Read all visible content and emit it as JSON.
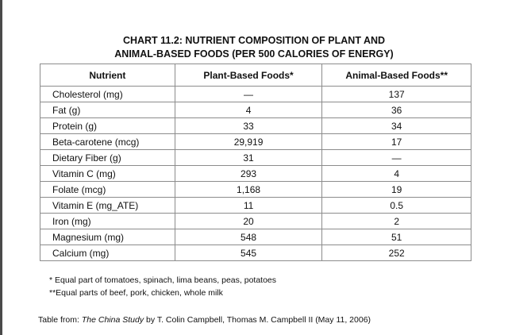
{
  "title": {
    "line1": "CHART 11.2: NUTRIENT COMPOSITION OF PLANT AND",
    "line2": "ANIMAL-BASED FOODS (PER 500 CALORIES OF ENERGY)"
  },
  "table": {
    "headers": [
      "Nutrient",
      "Plant-Based Foods*",
      "Animal-Based Foods**"
    ],
    "rows": [
      [
        "Cholesterol (mg)",
        "—",
        "137"
      ],
      [
        "Fat (g)",
        "4",
        "36"
      ],
      [
        "Protein (g)",
        "33",
        "34"
      ],
      [
        "Beta-carotene (mcg)",
        "29,919",
        "17"
      ],
      [
        "Dietary Fiber (g)",
        "31",
        "—"
      ],
      [
        "Vitamin C (mg)",
        "293",
        "4"
      ],
      [
        "Folate (mcg)",
        "1,168",
        "19"
      ],
      [
        "Vitamin E (mg_ATE)",
        "11",
        "0.5"
      ],
      [
        "Iron (mg)",
        "20",
        "2"
      ],
      [
        "Magnesium (mg)",
        "548",
        "51"
      ],
      [
        "Calcium (mg)",
        "545",
        "252"
      ]
    ]
  },
  "footnotes": {
    "plant": "* Equal part of tomatoes, spinach, lima beans, peas, potatoes",
    "animal": "**Equal parts of beef, pork, chicken, whole milk"
  },
  "source": {
    "prefix": "Table from: ",
    "book": "The China Study",
    "suffix": " by T. Colin Campbell, Thomas M. Campbell II (May 11, 2006)"
  }
}
